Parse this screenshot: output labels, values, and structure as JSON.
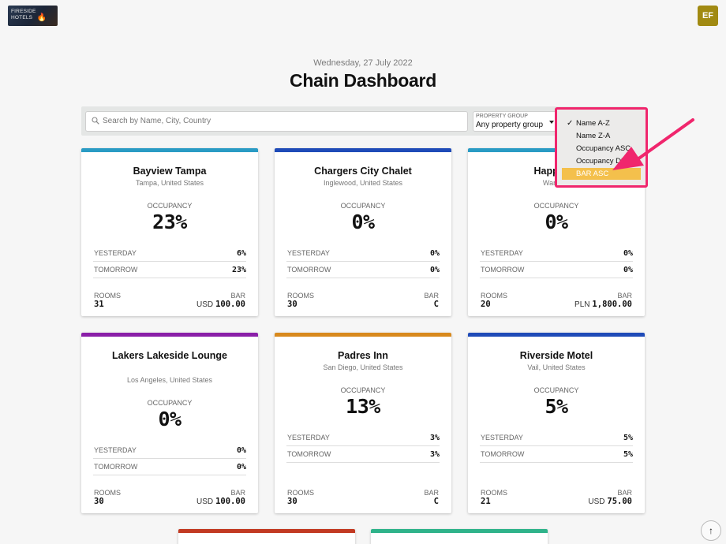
{
  "header": {
    "logo_text": "FIRESIDE\nHOTELS",
    "avatar_initials": "EF",
    "date": "Wednesday, 27 July 2022",
    "title": "Chain Dashboard"
  },
  "filters": {
    "search_placeholder": "Search by Name, City, Country",
    "property_group_label": "PROPERTY GROUP",
    "property_group_value": "Any property group"
  },
  "sort_menu": {
    "items": [
      {
        "label": "Name A-Z",
        "checked": true
      },
      {
        "label": "Name Z-A",
        "checked": false
      },
      {
        "label": "Occupancy ASC",
        "checked": false
      },
      {
        "label": "Occupancy DESC",
        "checked": false
      },
      {
        "label": "BAR ASC",
        "checked": false,
        "highlighted": true
      }
    ]
  },
  "labels": {
    "occupancy": "OCCUPANCY",
    "yesterday": "YESTERDAY",
    "tomorrow": "TOMORROW",
    "rooms": "ROOMS",
    "bar": "BAR"
  },
  "colors": {
    "accent_pink": "#f0266d",
    "highlight_yellow": "#f4c04c",
    "avatar": "#a18a12"
  },
  "cards": [
    {
      "name": "Bayview Tampa",
      "location": "Tampa, United States",
      "occupancy": "23%",
      "yesterday": "6%",
      "tomorrow": "23%",
      "rooms": "31",
      "bar_currency": "USD",
      "bar_amount": "100.00",
      "color": "#2a9bc4"
    },
    {
      "name": "Chargers City Chalet",
      "location": "Inglewood, United States",
      "occupancy": "0%",
      "yesterday": "0%",
      "tomorrow": "0%",
      "rooms": "30",
      "bar_currency": "",
      "bar_amount": "C",
      "color": "#1f4bb8"
    },
    {
      "name": "Happy Pa",
      "location": "Warsaw,",
      "occupancy": "0%",
      "yesterday": "0%",
      "tomorrow": "0%",
      "rooms": "20",
      "bar_currency": "PLN",
      "bar_amount": "1,800.00",
      "color": "#2a9bc4"
    },
    {
      "name": "Lakers Lakeside Lounge",
      "location": "Los Angeles, United States",
      "occupancy": "0%",
      "yesterday": "0%",
      "tomorrow": "0%",
      "rooms": "30",
      "bar_currency": "USD",
      "bar_amount": "100.00",
      "color": "#8a1fa8"
    },
    {
      "name": "Padres Inn",
      "location": "San Diego, United States",
      "occupancy": "13%",
      "yesterday": "3%",
      "tomorrow": "3%",
      "rooms": "30",
      "bar_currency": "",
      "bar_amount": "C",
      "color": "#d8891d"
    },
    {
      "name": "Riverside Motel",
      "location": "Vail, United States",
      "occupancy": "5%",
      "yesterday": "5%",
      "tomorrow": "5%",
      "rooms": "21",
      "bar_currency": "USD",
      "bar_amount": "75.00",
      "color": "#1f4bb8"
    }
  ],
  "partial_cards": [
    {
      "color": "#c23a22"
    },
    {
      "color": "#2fb38a"
    }
  ]
}
